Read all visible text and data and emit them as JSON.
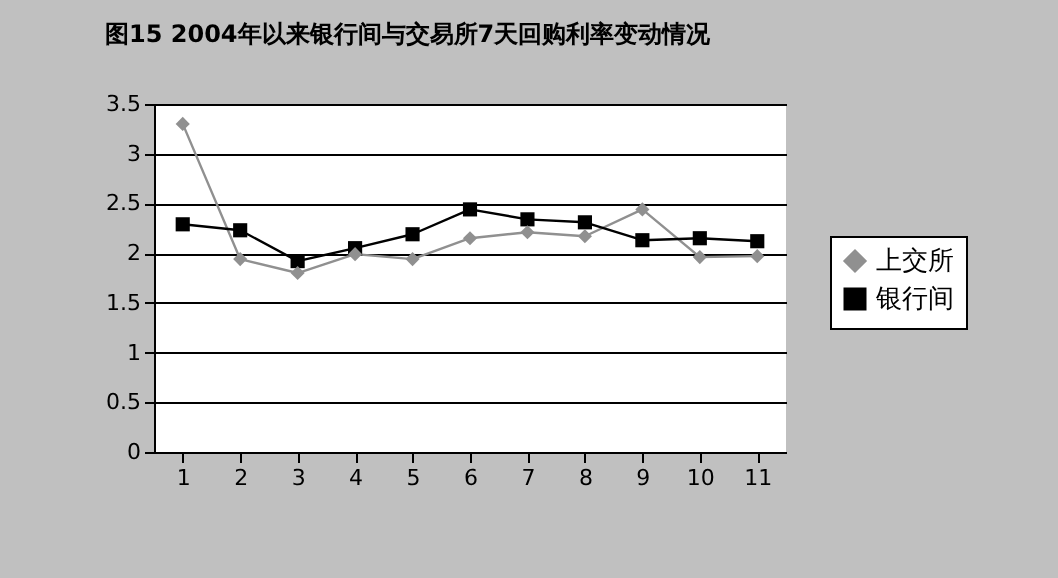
{
  "chart_data": {
    "type": "line",
    "title": "图15  2004年以来银行间与交易所7天回购利率变动情况",
    "categories": [
      "1",
      "2",
      "3",
      "4",
      "5",
      "6",
      "7",
      "8",
      "9",
      "10",
      "11"
    ],
    "series": [
      {
        "name": "上交所",
        "color": "#909090",
        "marker": "diamond",
        "values": [
          3.3,
          1.94,
          1.8,
          1.99,
          1.94,
          2.15,
          2.21,
          2.17,
          2.44,
          1.96,
          1.97
        ]
      },
      {
        "name": "银行间",
        "color": "#000000",
        "marker": "square",
        "values": [
          2.29,
          2.23,
          1.92,
          2.05,
          2.19,
          2.44,
          2.34,
          2.31,
          2.13,
          2.15,
          2.12
        ]
      }
    ],
    "ylim": [
      0,
      3.5
    ],
    "yticks": [
      0,
      0.5,
      1,
      1.5,
      2,
      2.5,
      3,
      3.5
    ],
    "grid": "y",
    "legend": "right",
    "line_style": "solid"
  }
}
